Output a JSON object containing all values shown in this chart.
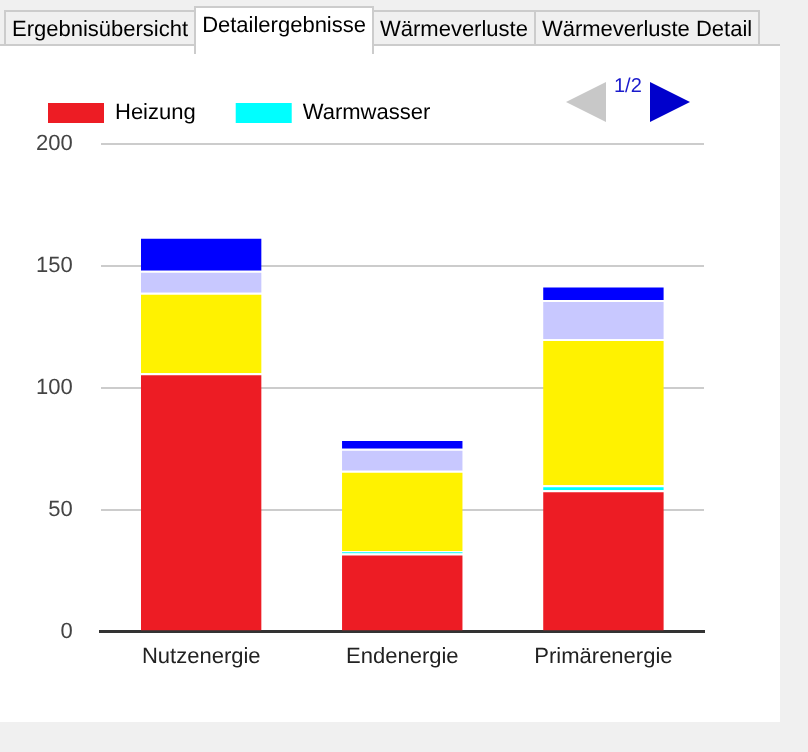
{
  "chart_data": {
    "type": "bar",
    "stacked": true,
    "categories": [
      "Nutzenergie",
      "Endenergie",
      "Primärenergie"
    ],
    "series": [
      {
        "name": "Heizung",
        "color": "#ed1c24",
        "values": [
          106,
          32,
          58
        ]
      },
      {
        "name": "Warmwasser",
        "color": "#00ffff",
        "values": [
          0,
          1,
          2
        ]
      },
      {
        "color": "#fff200",
        "values": [
          33,
          33,
          60
        ]
      },
      {
        "color": "#c8c8ff",
        "values": [
          9,
          9,
          16
        ]
      },
      {
        "color": "#0000ff",
        "values": [
          14,
          4,
          6
        ]
      }
    ],
    "ylim": [
      0,
      200
    ],
    "yticks": [
      0,
      50,
      100,
      150,
      200
    ],
    "grid": "y",
    "legend": "top left",
    "annotations": [
      "Ergebnisübersicht",
      "Detailergebnisse",
      "Wärmeverluste",
      "Wärmeverluste Detail",
      "1/2"
    ]
  }
}
